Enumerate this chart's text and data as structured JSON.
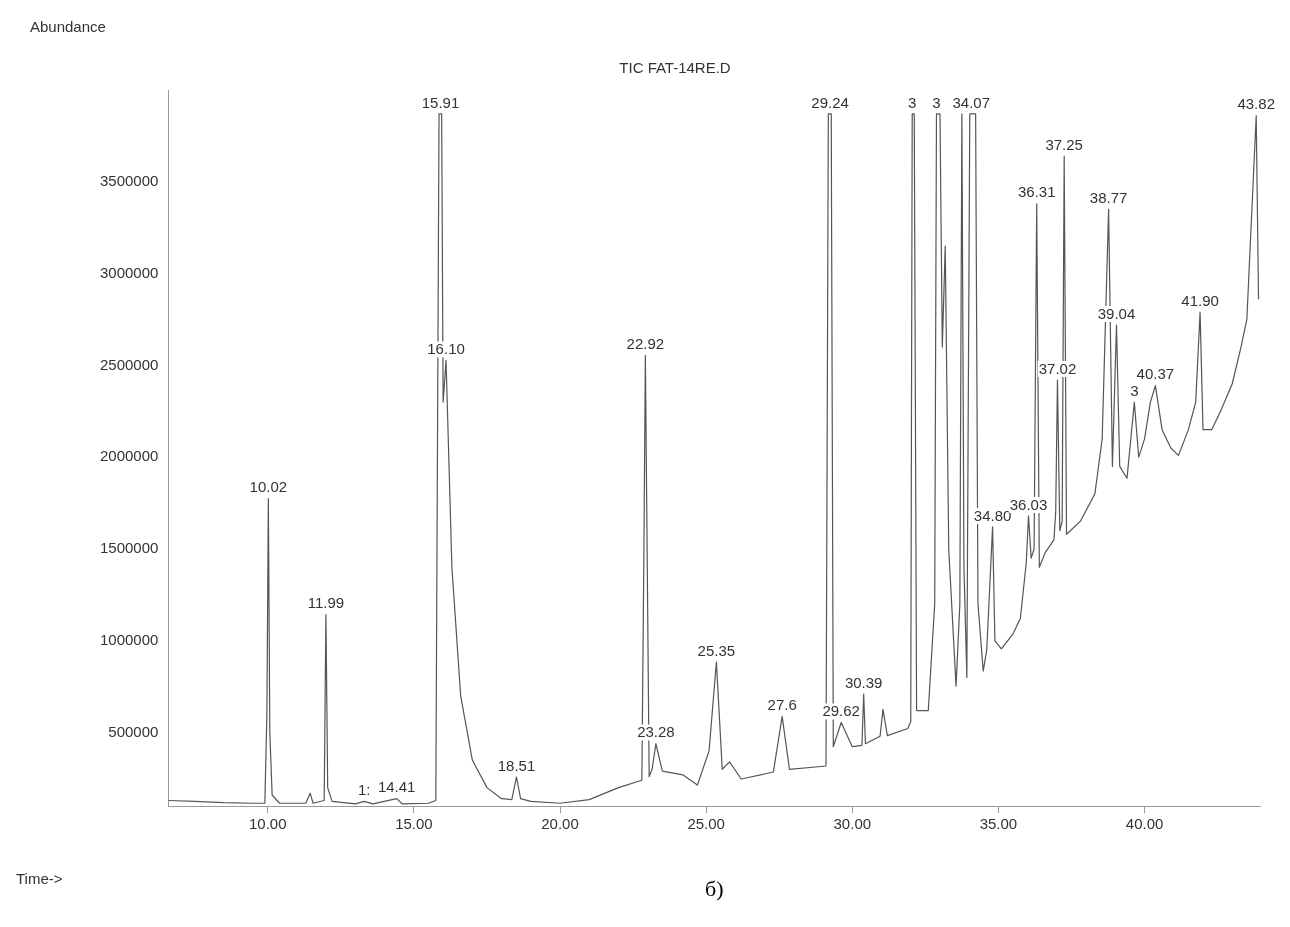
{
  "chart_data": {
    "type": "line",
    "title": "TIC FAT-14RE.D",
    "xlabel": "Time->",
    "ylabel": "Abundance",
    "xlim": [
      6.6,
      43.95
    ],
    "ylim": [
      100000,
      4000000
    ],
    "xticks": [
      {
        "value": 10,
        "label": "10.00"
      },
      {
        "value": 15,
        "label": "15.00"
      },
      {
        "value": 20,
        "label": "20.00"
      },
      {
        "value": 25,
        "label": "25.00"
      },
      {
        "value": 30,
        "label": "30.00"
      },
      {
        "value": 35,
        "label": "35.00"
      },
      {
        "value": 40,
        "label": "40.00"
      }
    ],
    "yticks": [
      500000,
      1000000,
      1500000,
      2000000,
      2500000,
      3000000,
      3500000
    ],
    "grid": false,
    "legend": false,
    "marker": "none",
    "line_style": "solid",
    "series": [
      {
        "color": "#555555",
        "x": [
          6.6,
          7.5,
          8.5,
          9.5,
          9.9,
          9.97,
          10.02,
          10.07,
          10.15,
          10.4,
          11.3,
          11.45,
          11.55,
          11.93,
          11.99,
          12.05,
          12.2,
          13.0,
          13.3,
          13.6,
          14.41,
          14.6,
          15.5,
          15.75,
          15.86,
          15.95,
          16.0,
          16.1,
          16.3,
          16.6,
          17.0,
          17.5,
          18.0,
          18.35,
          18.51,
          18.65,
          19.0,
          20.0,
          21.0,
          22.0,
          22.8,
          22.87,
          22.92,
          22.98,
          23.05,
          23.15,
          23.28,
          23.5,
          24.2,
          24.7,
          25.1,
          25.35,
          25.55,
          25.8,
          26.2,
          27.3,
          27.6,
          27.85,
          29.1,
          29.18,
          29.28,
          29.35,
          29.62,
          30.0,
          30.33,
          30.39,
          30.45,
          30.95,
          31.05,
          31.2,
          31.9,
          32.0,
          32.05,
          32.12,
          32.2,
          32.6,
          32.82,
          32.88,
          33.0,
          33.08,
          33.18,
          33.3,
          33.55,
          33.68,
          33.75,
          33.82,
          33.92,
          34.02,
          34.07,
          34.15,
          34.22,
          34.3,
          34.48,
          34.6,
          34.8,
          34.88,
          35.1,
          35.5,
          35.75,
          35.95,
          36.03,
          36.12,
          36.22,
          36.31,
          36.4,
          36.6,
          36.9,
          36.96,
          37.02,
          37.1,
          37.18,
          37.25,
          37.33,
          37.8,
          38.3,
          38.55,
          38.77,
          38.9,
          39.04,
          39.15,
          39.4,
          39.65,
          39.8,
          40.0,
          40.2,
          40.37,
          40.6,
          40.9,
          41.16,
          41.5,
          41.75,
          41.9,
          42.0,
          42.3,
          42.6,
          43.0,
          43.3,
          43.5,
          43.82,
          43.9
        ],
        "values": [
          130000,
          125000,
          118000,
          115000,
          115000,
          600000,
          1775000,
          500000,
          160000,
          115000,
          115000,
          170000,
          115000,
          130000,
          1143000,
          200000,
          125000,
          112000,
          125000,
          112000,
          140000,
          112000,
          115000,
          130000,
          3870000,
          3870000,
          2300000,
          2527000,
          1400000,
          700000,
          350000,
          200000,
          140000,
          135000,
          258000,
          140000,
          125000,
          115000,
          135000,
          200000,
          240000,
          1500000,
          2555000,
          1500000,
          260000,
          300000,
          440000,
          290000,
          270000,
          214000,
          400000,
          884000,
          300000,
          340000,
          247000,
          285000,
          588000,
          300000,
          318000,
          3870000,
          3870000,
          423000,
          555000,
          423000,
          430000,
          709000,
          439000,
          480000,
          626000,
          483000,
          522000,
          560000,
          3870000,
          3870000,
          620000,
          620000,
          1200000,
          3870000,
          3870000,
          2600000,
          3150000,
          1500000,
          753000,
          1200000,
          3870000,
          1400000,
          800000,
          3870000,
          3870000,
          3870000,
          3870000,
          1200000,
          835000,
          950000,
          1620000,
          1000000,
          956000,
          1038000,
          1121000,
          1420000,
          1680000,
          1450000,
          1500000,
          3380000,
          1400000,
          1480000,
          1550000,
          1700000,
          2420000,
          1600000,
          1650000,
          3640000,
          1580000,
          1650000,
          1800000,
          2100000,
          3350000,
          1950000,
          2720000,
          1950000,
          1885000,
          2300000,
          2000000,
          2100000,
          2300000,
          2390000,
          2150000,
          2050000,
          2010000,
          2150000,
          2300000,
          2790000,
          2150000,
          2150000,
          2250000,
          2400000,
          2600000,
          2750000,
          3860000,
          2860000
        ]
      }
    ],
    "annotations": [
      {
        "text": "10.02",
        "x": 10.02,
        "y": 1775000
      },
      {
        "text": "11.99",
        "x": 11.99,
        "y": 1143000
      },
      {
        "text": "1:",
        "x": 13.3,
        "y": 125000
      },
      {
        "text": "14.41",
        "x": 14.41,
        "y": 140000
      },
      {
        "text": "15.91",
        "x": 15.91,
        "y": 3870000
      },
      {
        "text": "16.10",
        "x": 16.1,
        "y": 2527000
      },
      {
        "text": "18.51",
        "x": 18.51,
        "y": 258000
      },
      {
        "text": "22.92",
        "x": 22.92,
        "y": 2555000
      },
      {
        "text": "23.28",
        "x": 23.28,
        "y": 440000
      },
      {
        "text": "25.35",
        "x": 25.35,
        "y": 884000
      },
      {
        "text": "27.6",
        "x": 27.6,
        "y": 588000
      },
      {
        "text": "29.24",
        "x": 29.24,
        "y": 3870000
      },
      {
        "text": "29.62",
        "x": 29.62,
        "y": 555000
      },
      {
        "text": "30.39",
        "x": 30.39,
        "y": 709000
      },
      {
        "text": "3",
        "x": 32.05,
        "y": 3870000
      },
      {
        "text": "3",
        "x": 32.88,
        "y": 3870000
      },
      {
        "text": "34.07",
        "x": 34.07,
        "y": 3870000
      },
      {
        "text": "34.80",
        "x": 34.8,
        "y": 1620000
      },
      {
        "text": "36.03",
        "x": 36.03,
        "y": 1680000
      },
      {
        "text": "36.31",
        "x": 36.31,
        "y": 3380000
      },
      {
        "text": "37.02",
        "x": 37.02,
        "y": 2420000
      },
      {
        "text": "37.25",
        "x": 37.25,
        "y": 3640000
      },
      {
        "text": "38.77",
        "x": 38.77,
        "y": 3350000
      },
      {
        "text": "39.04",
        "x": 39.04,
        "y": 2720000
      },
      {
        "text": "3",
        "x": 39.65,
        "y": 2300000
      },
      {
        "text": "40.37",
        "x": 40.37,
        "y": 2390000
      },
      {
        "text": "41.90",
        "x": 41.9,
        "y": 2790000
      },
      {
        "text": "43.82",
        "x": 43.82,
        "y": 3860000
      },
      "б)"
    ]
  }
}
